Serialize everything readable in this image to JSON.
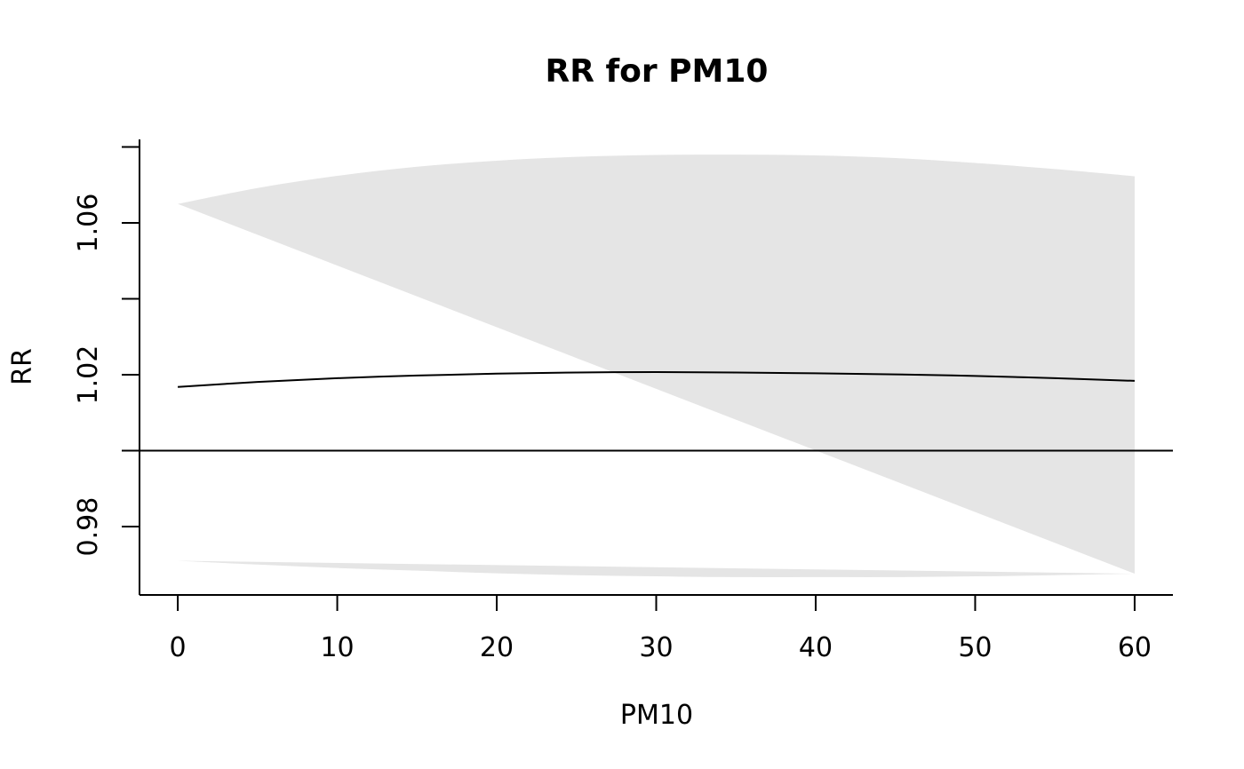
{
  "chart_data": {
    "type": "line",
    "title": "RR for PM10",
    "xlabel": "PM10",
    "ylabel": "RR",
    "xlim": [
      -2.4,
      62.4
    ],
    "ylim": [
      0.962,
      1.082
    ],
    "x_ticks": [
      0,
      10,
      20,
      30,
      40,
      50,
      60
    ],
    "x_tick_labels": [
      "0",
      "10",
      "20",
      "30",
      "40",
      "50",
      "60"
    ],
    "y_ticks": [
      0.98,
      1.0,
      1.02,
      1.04,
      1.06,
      1.08
    ],
    "y_tick_labels": [
      "0.98",
      "",
      "1.02",
      "",
      "1.06",
      ""
    ],
    "reference_line": 1.0,
    "grid": false,
    "colors": {
      "band": "#e5e5e5",
      "line": "#000000"
    },
    "x": [
      0,
      5,
      10,
      15,
      20,
      25,
      30,
      35,
      40,
      45,
      50,
      55,
      60
    ],
    "series": [
      {
        "role": "estimate",
        "values": [
          1.0168,
          1.0181,
          1.0191,
          1.0198,
          1.0203,
          1.0206,
          1.0207,
          1.0206,
          1.0204,
          1.0201,
          1.0197,
          1.0191,
          1.0184
        ]
      },
      {
        "role": "upper",
        "values": [
          1.065,
          1.0692,
          1.0724,
          1.0748,
          1.0764,
          1.0774,
          1.0779,
          1.078,
          1.0778,
          1.0771,
          1.0758,
          1.0742,
          1.0723
        ]
      },
      {
        "role": "lower",
        "values": [
          0.971,
          0.97,
          0.9691,
          0.9684,
          0.9677,
          0.9672,
          0.9669,
          0.9667,
          0.9667,
          0.9667,
          0.9669,
          0.9672,
          0.9676
        ]
      }
    ]
  }
}
